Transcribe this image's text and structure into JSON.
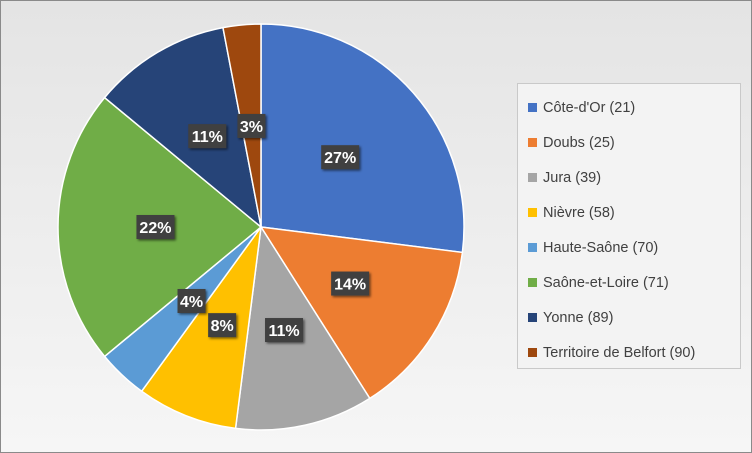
{
  "chart_data": {
    "type": "pie",
    "categories": [
      "Côte-d'Or (21)",
      "Doubs (25)",
      "Jura (39)",
      "Nièvre (58)",
      "Haute-Saône (70)",
      "Saône-et-Loire (71)",
      "Yonne (89)",
      "Territoire de Belfort (90)"
    ],
    "values": [
      27,
      14,
      11,
      8,
      4,
      22,
      11,
      3
    ],
    "data_labels": [
      "27%",
      "14%",
      "11%",
      "8%",
      "4%",
      "22%",
      "11%",
      "3%"
    ],
    "colors": [
      "#4472C4",
      "#ED7D31",
      "#A5A5A5",
      "#FFC000",
      "#5B9BD5",
      "#70AD47",
      "#264478",
      "#9E480E"
    ],
    "legend_position": "right",
    "start_angle": "12 o'clock",
    "direction": "clockwise"
  }
}
